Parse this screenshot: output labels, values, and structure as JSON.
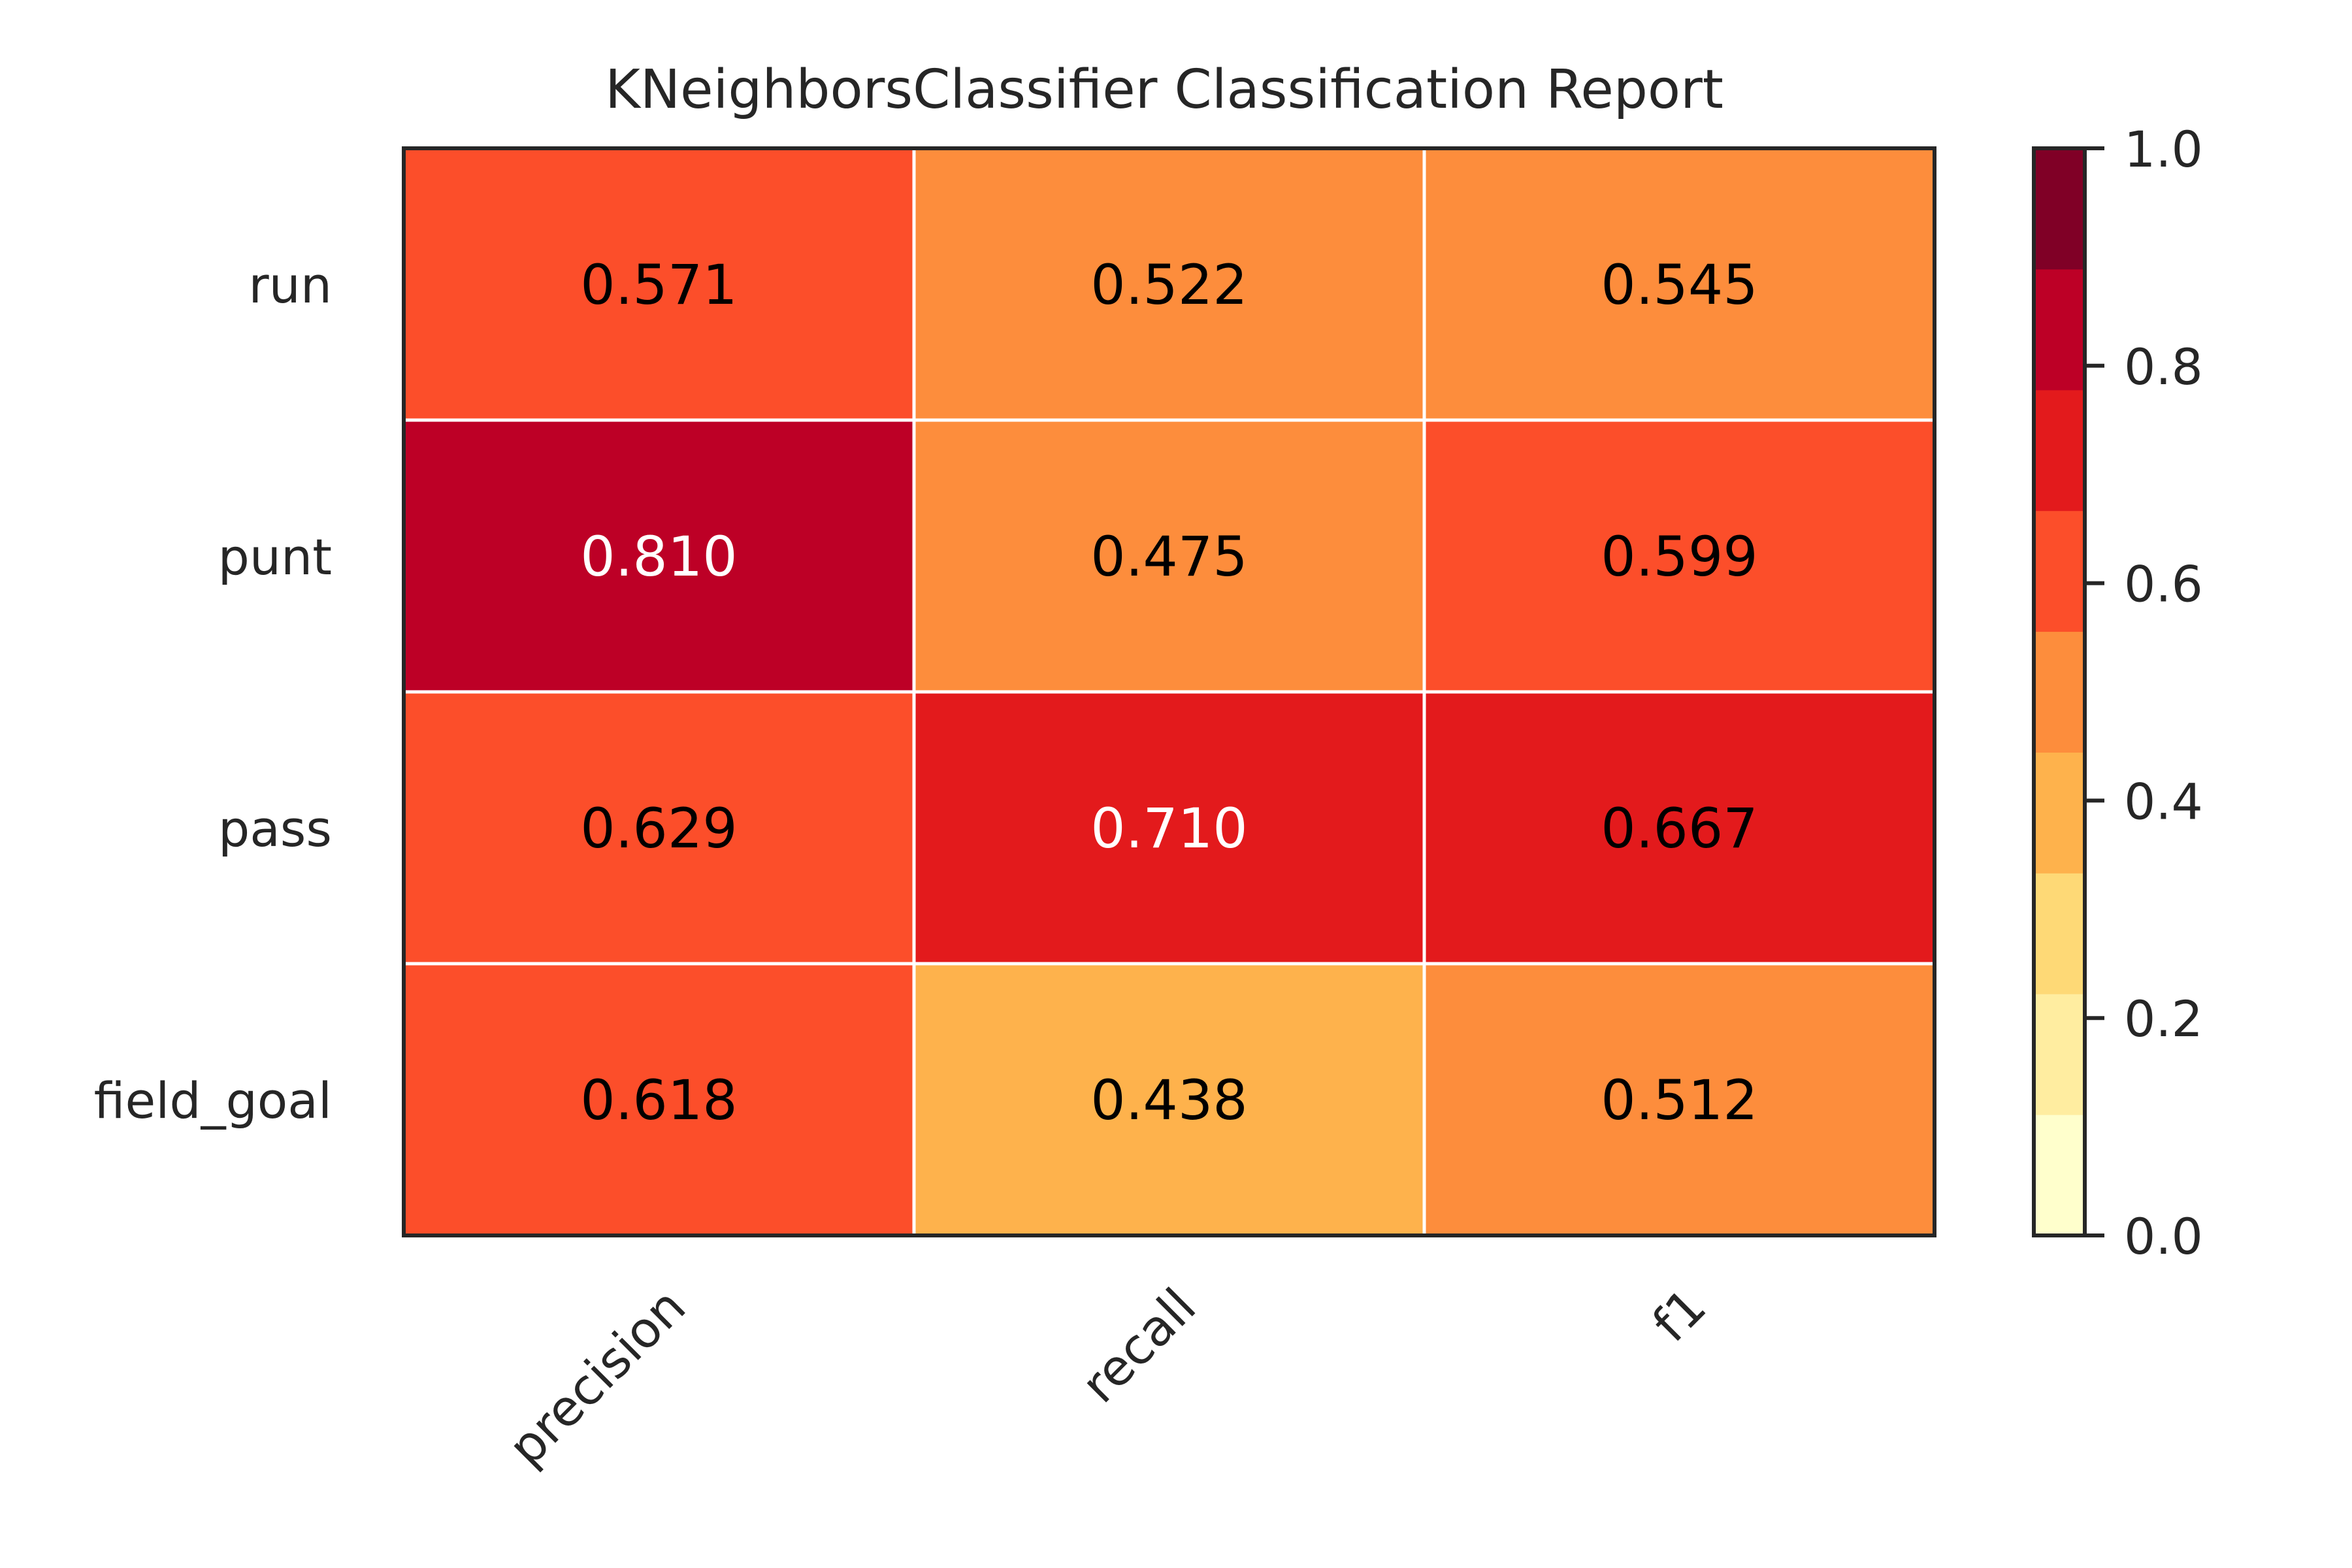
{
  "chart_data": {
    "type": "heatmap",
    "title": "KNeighborsClassifier Classification Report",
    "xlabel": "",
    "ylabel": "",
    "columns": [
      "precision",
      "recall",
      "f1"
    ],
    "rows": [
      "run",
      "punt",
      "pass",
      "field_goal"
    ],
    "values": [
      [
        0.571,
        0.522,
        0.545
      ],
      [
        0.81,
        0.475,
        0.599
      ],
      [
        0.629,
        0.71,
        0.667
      ],
      [
        0.618,
        0.438,
        0.512
      ]
    ],
    "cell_labels": [
      [
        "0.571",
        "0.522",
        "0.545"
      ],
      [
        "0.810",
        "0.475",
        "0.599"
      ],
      [
        "0.629",
        "0.710",
        "0.667"
      ],
      [
        "0.618",
        "0.438",
        "0.512"
      ]
    ],
    "colorbar": {
      "range": [
        0.0,
        1.0
      ],
      "ticks": [
        0.0,
        0.2,
        0.4,
        0.6,
        0.8,
        1.0
      ],
      "tick_labels": [
        "0.0",
        "0.2",
        "0.4",
        "0.6",
        "0.8",
        "1.0"
      ],
      "levels": 9,
      "colors": [
        "#ffffcc",
        "#ffeda0",
        "#fed976",
        "#feb24c",
        "#fd8d3c",
        "#fc4e2a",
        "#e31a1c",
        "#bd0026",
        "#800026"
      ]
    },
    "text_color_dark": "#000000",
    "text_color_light": "#ffffff",
    "grid": false
  }
}
